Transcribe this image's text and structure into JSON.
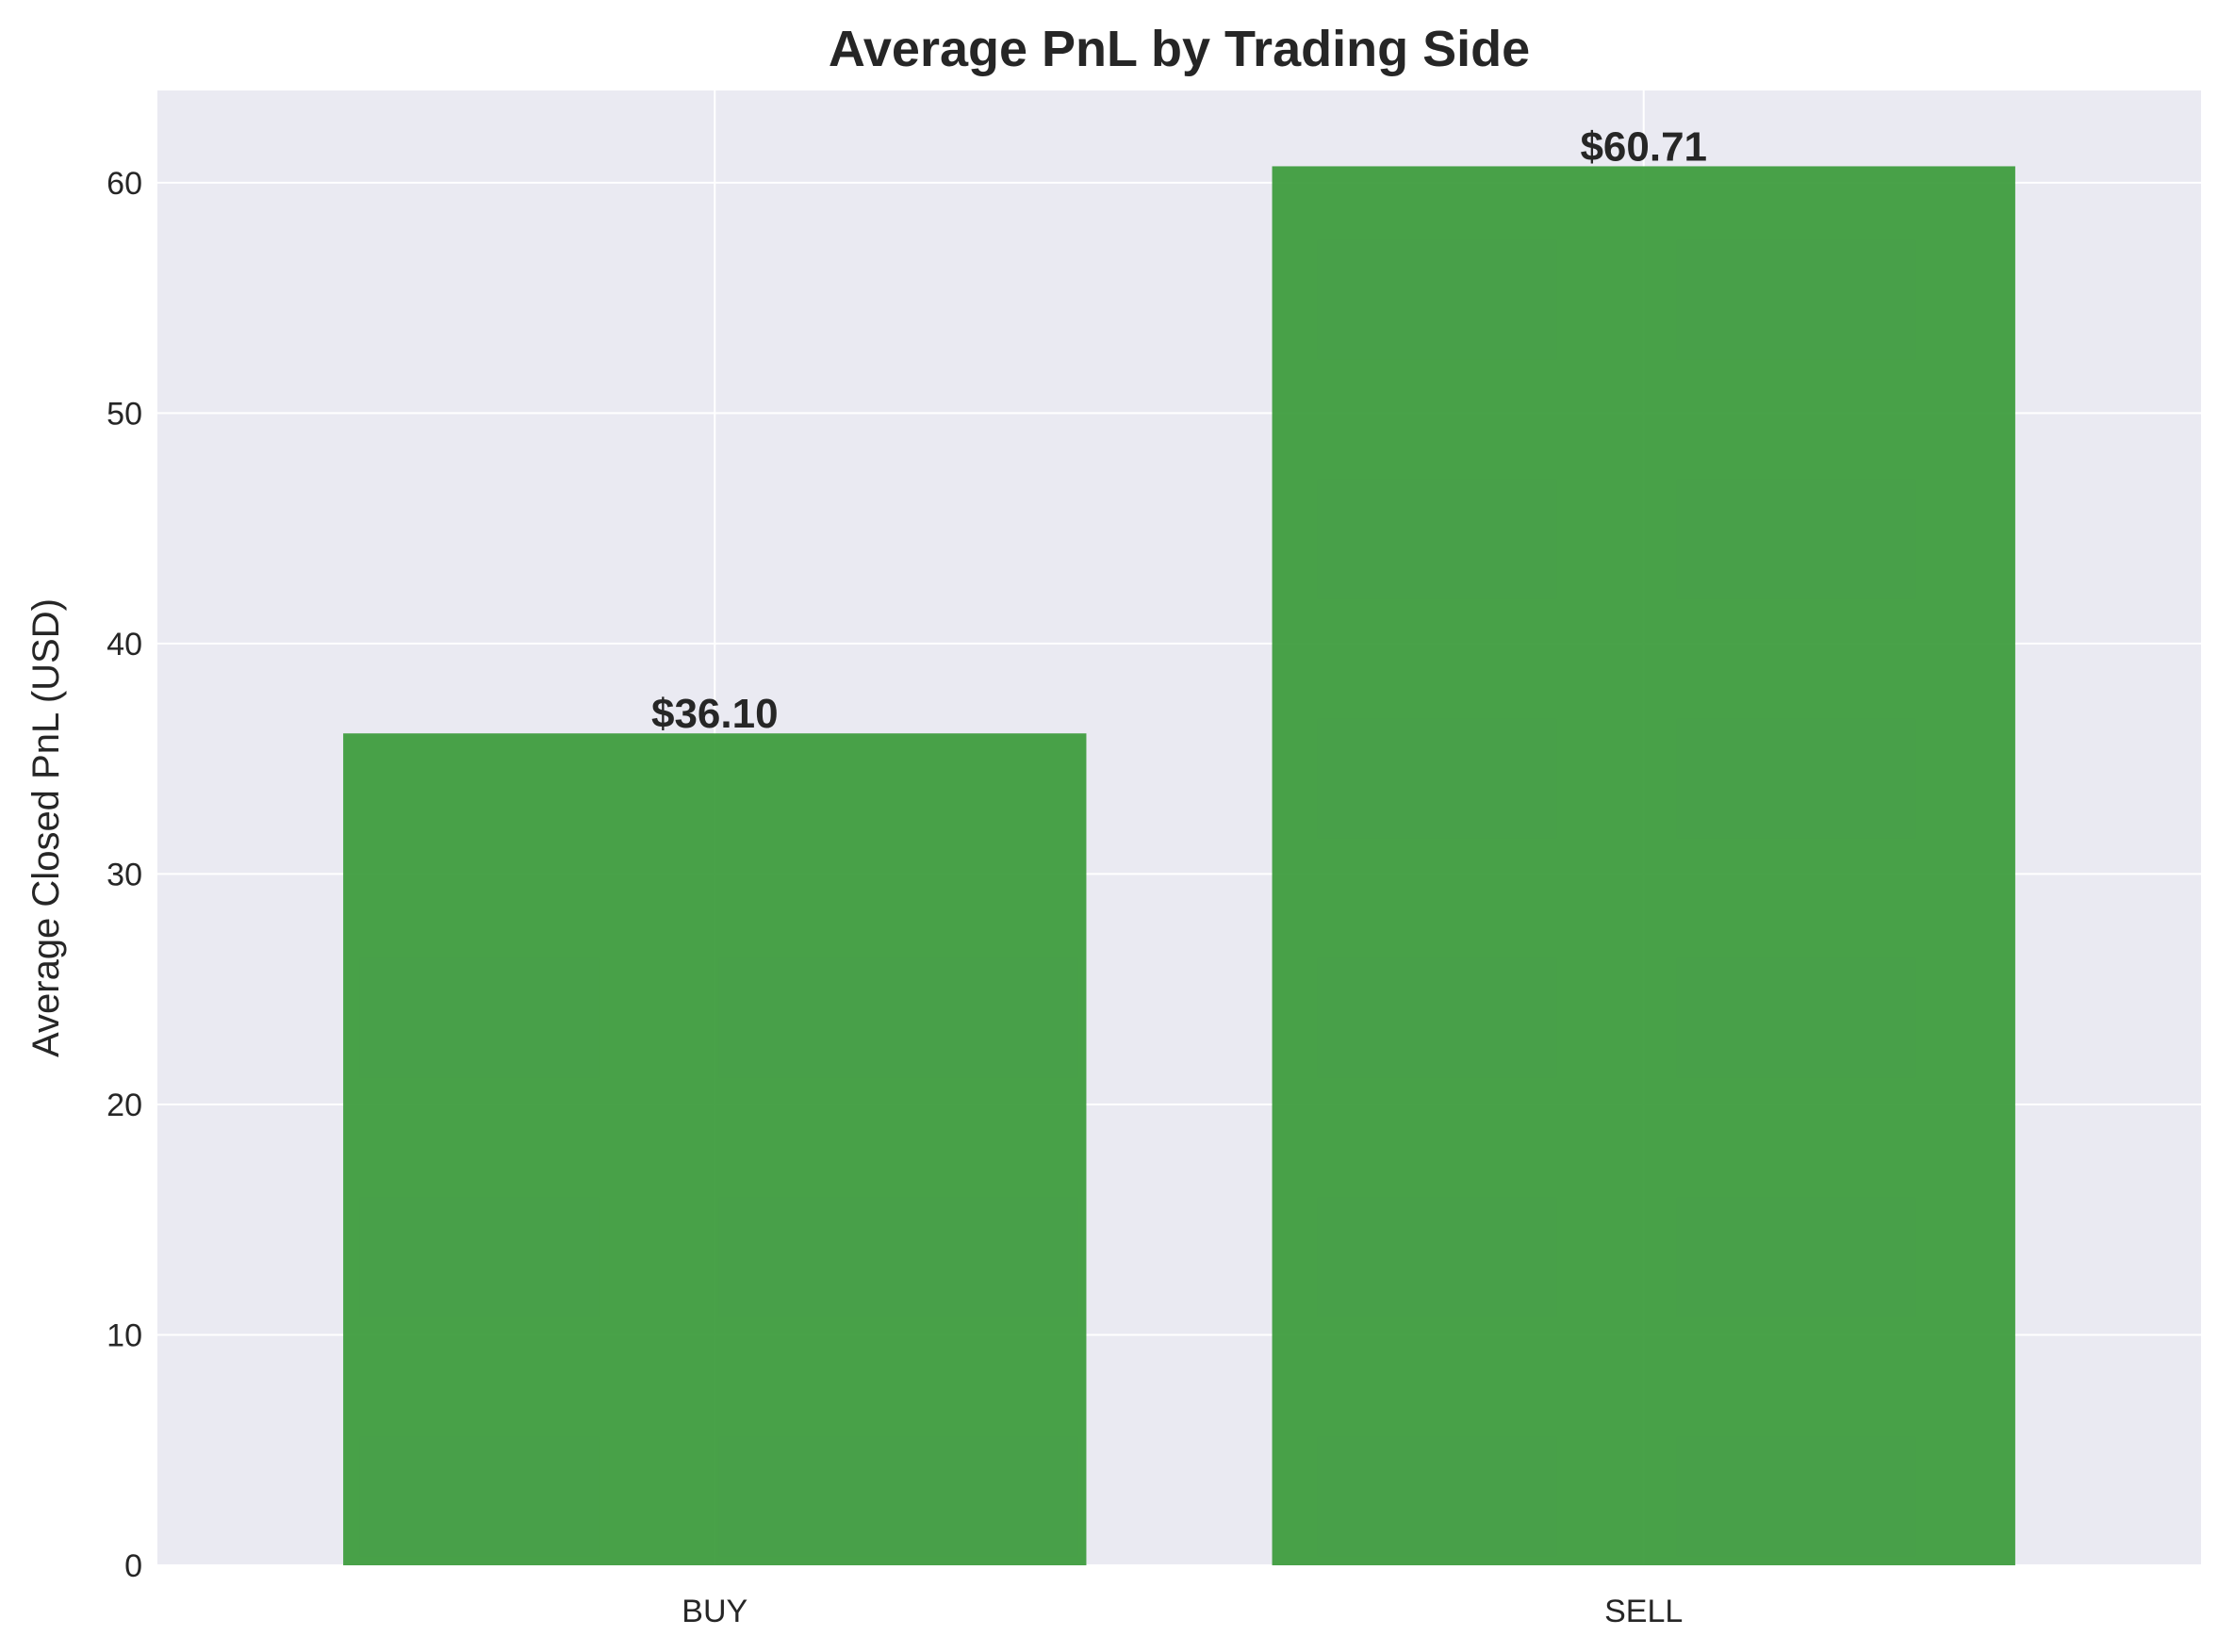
{
  "chart_data": {
    "type": "bar",
    "title": "Average PnL by Trading Side",
    "xlabel": "",
    "ylabel": "Average Closed PnL (USD)",
    "categories": [
      "BUY",
      "SELL"
    ],
    "values": [
      36.1,
      60.71
    ],
    "data_labels": [
      "$36.10",
      "$60.71"
    ],
    "ylim": [
      0,
      64
    ],
    "yticks": [
      0,
      10,
      20,
      30,
      40,
      50,
      60
    ],
    "grid": true,
    "bar_color": "#3a9a3a",
    "background_color": "#eaeaf2",
    "grid_color": "#ffffff"
  }
}
